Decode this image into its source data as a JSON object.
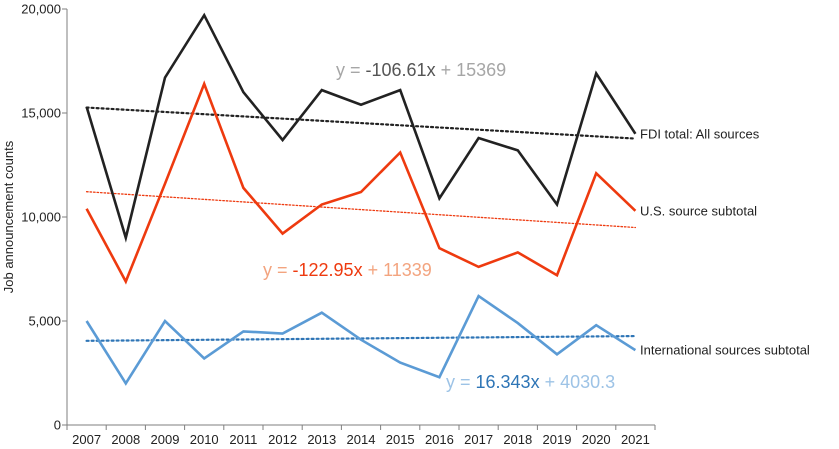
{
  "chart_data": {
    "type": "line",
    "title": "",
    "xlabel": "",
    "ylabel": "Job announcement counts",
    "categories": [
      "2007",
      "2008",
      "2009",
      "2010",
      "2011",
      "2012",
      "2013",
      "2014",
      "2015",
      "2016",
      "2017",
      "2018",
      "2019",
      "2020",
      "2021"
    ],
    "ylim": [
      0,
      20000
    ],
    "yticks": [
      0,
      5000,
      10000,
      15000,
      20000
    ],
    "ytick_labels": [
      "0",
      "5,000",
      "10,000",
      "15,000",
      "20,000"
    ],
    "grid": false,
    "series": [
      {
        "name": "FDI total: All sources",
        "color": "#222222",
        "values": [
          15300,
          9000,
          16700,
          19700,
          16000,
          13700,
          16100,
          15400,
          16100,
          10900,
          13800,
          13200,
          10600,
          16900,
          14000
        ],
        "trendline": {
          "slope": -106.61,
          "intercept": 15369,
          "color": "#222222"
        },
        "equation": {
          "prefix": "y = ",
          "slope": "-106.61x",
          "suffix": " + 15369",
          "prefix_color": "#a6a6a6",
          "slope_color": "#555555",
          "suffix_color": "#a6a6a6"
        }
      },
      {
        "name": "U.S. source subtotal",
        "color": "#ee3a0f",
        "values": [
          10400,
          6900,
          11600,
          16400,
          11400,
          9200,
          10600,
          11200,
          13100,
          8500,
          7600,
          8300,
          7200,
          12100,
          10300
        ],
        "trendline": {
          "slope": -122.95,
          "intercept": 11339,
          "color": "#ee3a0f"
        },
        "equation": {
          "prefix": "y = ",
          "slope": "-122.95x",
          "suffix": " + 11339",
          "prefix_color": "#f3a47f",
          "slope_color": "#ee3a0f",
          "suffix_color": "#f3a47f"
        }
      },
      {
        "name": "International sources subtotal",
        "color": "#5b9bd5",
        "values": [
          5000,
          2000,
          5000,
          3200,
          4500,
          4400,
          5400,
          4100,
          3000,
          2300,
          6200,
          4900,
          3400,
          4800,
          3600
        ],
        "trendline": {
          "slope": 16.343,
          "intercept": 4030.3,
          "color": "#2e75b6"
        },
        "equation": {
          "prefix": "y = ",
          "slope": "16.343x",
          "suffix": " + 4030.3",
          "prefix_color": "#9dc3e6",
          "slope_color": "#2e75b6",
          "suffix_color": "#9dc3e6"
        }
      }
    ]
  }
}
